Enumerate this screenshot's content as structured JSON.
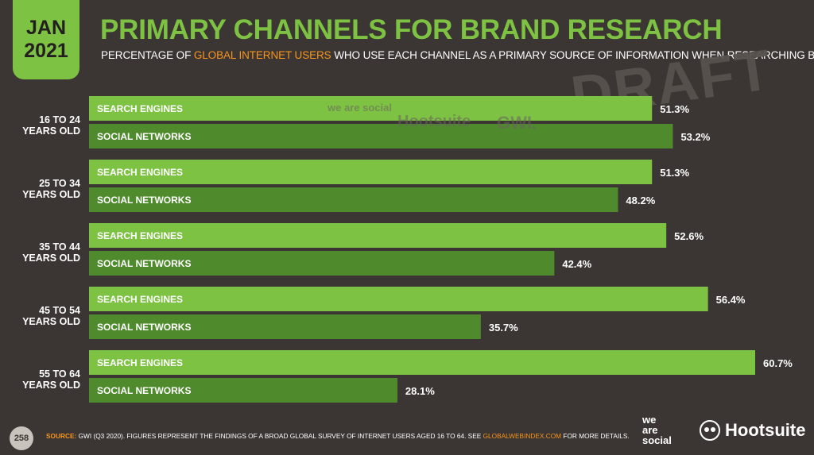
{
  "badge": {
    "line1": "JAN",
    "line2": "2021"
  },
  "header": {
    "title": "PRIMARY CHANNELS FOR BRAND RESEARCH",
    "subtitle_pre": "PERCENTAGE OF ",
    "subtitle_highlight": "GLOBAL INTERNET USERS",
    "subtitle_post": " WHO USE EACH CHANNEL AS A PRIMARY SOURCE OF INFORMATION WHEN RESEARCHING BRANDS"
  },
  "watermark": {
    "draft": "DRAFT",
    "was": "we are social",
    "hootsuite": "Hootsuite",
    "gwi": "GWI."
  },
  "colors": {
    "search": "#7dc242",
    "social": "#4f8a2c",
    "background": "#3b3633",
    "accent": "#f7941d"
  },
  "chart_data": {
    "type": "bar",
    "orientation": "horizontal",
    "unit": "%",
    "groups": [
      {
        "label": [
          "16 TO 24",
          "YEARS OLD"
        ],
        "bars": [
          {
            "name": "SEARCH ENGINES",
            "value": 51.3,
            "label": "51.3%"
          },
          {
            "name": "SOCIAL NETWORKS",
            "value": 53.2,
            "label": "53.2%"
          }
        ]
      },
      {
        "label": [
          "25 TO 34",
          "YEARS OLD"
        ],
        "bars": [
          {
            "name": "SEARCH ENGINES",
            "value": 51.3,
            "label": "51.3%"
          },
          {
            "name": "SOCIAL NETWORKS",
            "value": 48.2,
            "label": "48.2%"
          }
        ]
      },
      {
        "label": [
          "35 TO 44",
          "YEARS OLD"
        ],
        "bars": [
          {
            "name": "SEARCH ENGINES",
            "value": 52.6,
            "label": "52.6%"
          },
          {
            "name": "SOCIAL NETWORKS",
            "value": 42.4,
            "label": "42.4%"
          }
        ]
      },
      {
        "label": [
          "45 TO 54",
          "YEARS OLD"
        ],
        "bars": [
          {
            "name": "SEARCH ENGINES",
            "value": 56.4,
            "label": "56.4%"
          },
          {
            "name": "SOCIAL NETWORKS",
            "value": 35.7,
            "label": "35.7%"
          }
        ]
      },
      {
        "label": [
          "55 TO 64",
          "YEARS OLD"
        ],
        "bars": [
          {
            "name": "SEARCH ENGINES",
            "value": 60.7,
            "label": "60.7%"
          },
          {
            "name": "SOCIAL NETWORKS",
            "value": 28.1,
            "label": "28.1%"
          }
        ]
      }
    ],
    "xlim": [
      0,
      60.7
    ],
    "grid": false,
    "legend": "none"
  },
  "footer": {
    "page": "258",
    "source_label": "SOURCE:",
    "source_text": " GWI (Q3 2020). FIGURES REPRESENT THE FINDINGS OF A BROAD GLOBAL SURVEY OF INTERNET USERS AGED 16 TO 64. SEE ",
    "source_link": "GLOBALWEBINDEX.COM",
    "source_end": " FOR MORE DETAILS.",
    "logo_was": [
      "we",
      "are",
      "social"
    ],
    "logo_hootsuite": "Hootsuite"
  }
}
